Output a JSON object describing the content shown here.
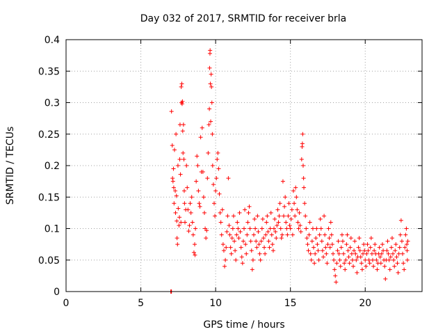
{
  "chart_data": {
    "type": "scatter",
    "title": "Day 032 of 2017, SRMTID for receiver brla",
    "xlabel": "GPS time / hours",
    "ylabel": "SRMTID / TECUs",
    "xlim": [
      0,
      23.8
    ],
    "ylim": [
      0,
      0.4
    ],
    "xticks": [
      0,
      5,
      10,
      15,
      20
    ],
    "yticks": [
      0,
      0.05,
      0.1,
      0.15,
      0.2,
      0.25,
      0.3,
      0.35,
      0.4
    ],
    "grid": true,
    "marker": "plus",
    "color": "#ff0000",
    "points": [
      [
        7.0,
        0.0
      ],
      [
        7.02,
        0.0
      ],
      [
        7.05,
        0.0
      ],
      [
        7.05,
        0.286
      ],
      [
        7.1,
        0.232
      ],
      [
        7.12,
        0.18
      ],
      [
        7.15,
        0.175
      ],
      [
        7.18,
        0.195
      ],
      [
        7.2,
        0.165
      ],
      [
        7.22,
        0.14
      ],
      [
        7.25,
        0.225
      ],
      [
        7.3,
        0.16
      ],
      [
        7.32,
        0.125
      ],
      [
        7.35,
        0.25
      ],
      [
        7.38,
        0.152
      ],
      [
        7.4,
        0.112
      ],
      [
        7.42,
        0.085
      ],
      [
        7.45,
        0.075
      ],
      [
        7.48,
        0.2
      ],
      [
        7.5,
        0.132
      ],
      [
        7.55,
        0.105
      ],
      [
        7.58,
        0.118
      ],
      [
        7.6,
        0.21
      ],
      [
        7.62,
        0.265
      ],
      [
        7.65,
        0.186
      ],
      [
        7.68,
        0.11
      ],
      [
        7.7,
        0.325
      ],
      [
        7.72,
        0.3
      ],
      [
        7.74,
        0.33
      ],
      [
        7.76,
        0.298
      ],
      [
        7.78,
        0.302
      ],
      [
        7.8,
        0.255
      ],
      [
        7.82,
        0.22
      ],
      [
        7.85,
        0.265
      ],
      [
        7.88,
        0.21
      ],
      [
        7.9,
        0.16
      ],
      [
        7.92,
        0.14
      ],
      [
        7.95,
        0.11
      ],
      [
        8.0,
        0.13
      ],
      [
        8.05,
        0.2
      ],
      [
        8.1,
        0.165
      ],
      [
        8.15,
        0.13
      ],
      [
        8.2,
        0.096
      ],
      [
        8.25,
        0.105
      ],
      [
        8.3,
        0.14
      ],
      [
        8.35,
        0.125
      ],
      [
        8.4,
        0.15
      ],
      [
        8.45,
        0.11
      ],
      [
        8.5,
        0.09
      ],
      [
        8.55,
        0.062
      ],
      [
        8.6,
        0.075
      ],
      [
        8.62,
        0.058
      ],
      [
        8.65,
        0.1
      ],
      [
        8.7,
        0.175
      ],
      [
        8.75,
        0.215
      ],
      [
        8.8,
        0.2
      ],
      [
        8.85,
        0.16
      ],
      [
        8.9,
        0.14
      ],
      [
        8.95,
        0.135
      ],
      [
        9.0,
        0.245
      ],
      [
        9.05,
        0.19
      ],
      [
        9.1,
        0.26
      ],
      [
        9.15,
        0.19
      ],
      [
        9.2,
        0.15
      ],
      [
        9.25,
        0.125
      ],
      [
        9.3,
        0.1
      ],
      [
        9.35,
        0.085
      ],
      [
        9.4,
        0.097
      ],
      [
        9.45,
        0.18
      ],
      [
        9.5,
        0.22
      ],
      [
        9.55,
        0.265
      ],
      [
        9.58,
        0.29
      ],
      [
        9.6,
        0.355
      ],
      [
        9.62,
        0.378
      ],
      [
        9.63,
        0.383
      ],
      [
        9.65,
        0.33
      ],
      [
        9.67,
        0.27
      ],
      [
        9.7,
        0.345
      ],
      [
        9.72,
        0.325
      ],
      [
        9.75,
        0.3
      ],
      [
        9.78,
        0.25
      ],
      [
        9.8,
        0.2
      ],
      [
        9.85,
        0.17
      ],
      [
        9.9,
        0.14
      ],
      [
        9.95,
        0.12
      ],
      [
        10.0,
        0.16
      ],
      [
        10.05,
        0.18
      ],
      [
        10.1,
        0.21
      ],
      [
        10.15,
        0.22
      ],
      [
        10.2,
        0.195
      ],
      [
        10.25,
        0.155
      ],
      [
        10.3,
        0.125
      ],
      [
        10.35,
        0.11
      ],
      [
        10.4,
        0.09
      ],
      [
        10.45,
        0.13
      ],
      [
        10.5,
        0.075
      ],
      [
        10.55,
        0.065
      ],
      [
        10.6,
        0.04
      ],
      [
        10.65,
        0.05
      ],
      [
        10.7,
        0.07
      ],
      [
        10.75,
        0.095
      ],
      [
        10.8,
        0.12
      ],
      [
        10.85,
        0.18
      ],
      [
        10.9,
        0.105
      ],
      [
        10.95,
        0.09
      ],
      [
        11.0,
        0.07
      ],
      [
        11.05,
        0.06
      ],
      [
        11.1,
        0.085
      ],
      [
        11.15,
        0.1
      ],
      [
        11.2,
        0.12
      ],
      [
        11.25,
        0.08
      ],
      [
        11.3,
        0.065
      ],
      [
        11.35,
        0.05
      ],
      [
        11.4,
        0.09
      ],
      [
        11.45,
        0.11
      ],
      [
        11.5,
        0.1
      ],
      [
        11.55,
        0.085
      ],
      [
        11.6,
        0.125
      ],
      [
        11.65,
        0.095
      ],
      [
        11.7,
        0.07
      ],
      [
        11.75,
        0.055
      ],
      [
        11.8,
        0.045
      ],
      [
        11.85,
        0.08
      ],
      [
        11.9,
        0.1
      ],
      [
        11.95,
        0.13
      ],
      [
        12.0,
        0.075
      ],
      [
        12.05,
        0.06
      ],
      [
        12.1,
        0.09
      ],
      [
        12.15,
        0.11
      ],
      [
        12.2,
        0.125
      ],
      [
        12.25,
        0.135
      ],
      [
        12.3,
        0.1
      ],
      [
        12.35,
        0.08
      ],
      [
        12.4,
        0.065
      ],
      [
        12.45,
        0.035
      ],
      [
        12.5,
        0.05
      ],
      [
        12.55,
        0.09
      ],
      [
        12.6,
        0.115
      ],
      [
        12.65,
        0.1
      ],
      [
        12.7,
        0.08
      ],
      [
        12.75,
        0.07
      ],
      [
        12.8,
        0.12
      ],
      [
        12.85,
        0.095
      ],
      [
        12.9,
        0.075
      ],
      [
        12.95,
        0.06
      ],
      [
        13.0,
        0.05
      ],
      [
        13.05,
        0.08
      ],
      [
        13.1,
        0.1
      ],
      [
        13.15,
        0.115
      ],
      [
        13.2,
        0.085
      ],
      [
        13.25,
        0.07
      ],
      [
        13.3,
        0.06
      ],
      [
        13.35,
        0.09
      ],
      [
        13.4,
        0.11
      ],
      [
        13.45,
        0.12
      ],
      [
        13.5,
        0.095
      ],
      [
        13.55,
        0.08
      ],
      [
        13.6,
        0.07
      ],
      [
        13.65,
        0.1
      ],
      [
        13.7,
        0.125
      ],
      [
        13.75,
        0.09
      ],
      [
        13.8,
        0.075
      ],
      [
        13.85,
        0.065
      ],
      [
        13.9,
        0.1
      ],
      [
        13.95,
        0.115
      ],
      [
        14.0,
        0.095
      ],
      [
        14.05,
        0.085
      ],
      [
        14.1,
        0.105
      ],
      [
        14.15,
        0.13
      ],
      [
        14.2,
        0.11
      ],
      [
        14.25,
        0.12
      ],
      [
        14.3,
        0.14
      ],
      [
        14.35,
        0.1
      ],
      [
        14.4,
        0.085
      ],
      [
        14.45,
        0.09
      ],
      [
        14.5,
        0.175
      ],
      [
        14.55,
        0.12
      ],
      [
        14.6,
        0.135
      ],
      [
        14.65,
        0.15
      ],
      [
        14.7,
        0.11
      ],
      [
        14.75,
        0.1
      ],
      [
        14.8,
        0.09
      ],
      [
        14.85,
        0.12
      ],
      [
        14.9,
        0.14
      ],
      [
        14.95,
        0.105
      ],
      [
        15.0,
        0.1
      ],
      [
        15.05,
        0.115
      ],
      [
        15.1,
        0.13
      ],
      [
        15.15,
        0.09
      ],
      [
        15.2,
        0.16
      ],
      [
        15.25,
        0.14
      ],
      [
        15.3,
        0.12
      ],
      [
        15.35,
        0.165
      ],
      [
        15.4,
        0.15
      ],
      [
        15.45,
        0.13
      ],
      [
        15.5,
        0.11
      ],
      [
        15.55,
        0.1
      ],
      [
        15.6,
        0.125
      ],
      [
        15.65,
        0.105
      ],
      [
        15.7,
        0.095
      ],
      [
        15.75,
        0.21
      ],
      [
        15.78,
        0.23
      ],
      [
        15.8,
        0.235
      ],
      [
        15.82,
        0.25
      ],
      [
        15.85,
        0.2
      ],
      [
        15.88,
        0.18
      ],
      [
        15.9,
        0.165
      ],
      [
        15.95,
        0.14
      ],
      [
        16.0,
        0.12
      ],
      [
        16.05,
        0.1
      ],
      [
        16.1,
        0.085
      ],
      [
        16.15,
        0.075
      ],
      [
        16.2,
        0.065
      ],
      [
        16.25,
        0.09
      ],
      [
        16.3,
        0.11
      ],
      [
        16.35,
        0.06
      ],
      [
        16.4,
        0.05
      ],
      [
        16.45,
        0.08
      ],
      [
        16.5,
        0.1
      ],
      [
        16.55,
        0.07
      ],
      [
        16.6,
        0.045
      ],
      [
        16.65,
        0.06
      ],
      [
        16.7,
        0.085
      ],
      [
        16.75,
        0.1
      ],
      [
        16.8,
        0.075
      ],
      [
        16.85,
        0.065
      ],
      [
        16.9,
        0.05
      ],
      [
        16.95,
        0.09
      ],
      [
        17.0,
        0.115
      ],
      [
        17.05,
        0.1
      ],
      [
        17.1,
        0.08
      ],
      [
        17.15,
        0.065
      ],
      [
        17.2,
        0.055
      ],
      [
        17.25,
        0.12
      ],
      [
        17.3,
        0.09
      ],
      [
        17.35,
        0.07
      ],
      [
        17.4,
        0.06
      ],
      [
        17.45,
        0.045
      ],
      [
        17.5,
        0.075
      ],
      [
        17.55,
        0.1
      ],
      [
        17.6,
        0.085
      ],
      [
        17.65,
        0.07
      ],
      [
        17.7,
        0.11
      ],
      [
        17.75,
        0.09
      ],
      [
        17.8,
        0.075
      ],
      [
        17.85,
        0.06
      ],
      [
        17.9,
        0.05
      ],
      [
        17.95,
        0.035
      ],
      [
        18.0,
        0.025
      ],
      [
        18.05,
        0.015
      ],
      [
        18.1,
        0.045
      ],
      [
        18.15,
        0.065
      ],
      [
        18.2,
        0.08
      ],
      [
        18.25,
        0.06
      ],
      [
        18.3,
        0.05
      ],
      [
        18.35,
        0.04
      ],
      [
        18.4,
        0.07
      ],
      [
        18.45,
        0.09
      ],
      [
        18.5,
        0.08
      ],
      [
        18.55,
        0.06
      ],
      [
        18.6,
        0.045
      ],
      [
        18.65,
        0.035
      ],
      [
        18.7,
        0.05
      ],
      [
        18.75,
        0.075
      ],
      [
        18.8,
        0.09
      ],
      [
        18.85,
        0.065
      ],
      [
        18.9,
        0.055
      ],
      [
        18.95,
        0.045
      ],
      [
        19.0,
        0.07
      ],
      [
        19.05,
        0.085
      ],
      [
        19.1,
        0.06
      ],
      [
        19.15,
        0.05
      ],
      [
        19.2,
        0.04
      ],
      [
        19.25,
        0.065
      ],
      [
        19.3,
        0.08
      ],
      [
        19.35,
        0.06
      ],
      [
        19.4,
        0.05
      ],
      [
        19.45,
        0.03
      ],
      [
        19.5,
        0.055
      ],
      [
        19.55,
        0.07
      ],
      [
        19.6,
        0.085
      ],
      [
        19.65,
        0.065
      ],
      [
        19.7,
        0.055
      ],
      [
        19.75,
        0.045
      ],
      [
        19.8,
        0.035
      ],
      [
        19.85,
        0.06
      ],
      [
        19.9,
        0.075
      ],
      [
        19.95,
        0.065
      ],
      [
        20.0,
        0.05
      ],
      [
        20.05,
        0.04
      ],
      [
        20.1,
        0.06
      ],
      [
        20.15,
        0.075
      ],
      [
        20.2,
        0.065
      ],
      [
        20.25,
        0.05
      ],
      [
        20.3,
        0.045
      ],
      [
        20.35,
        0.07
      ],
      [
        20.4,
        0.085
      ],
      [
        20.45,
        0.06
      ],
      [
        20.5,
        0.05
      ],
      [
        20.55,
        0.04
      ],
      [
        20.6,
        0.065
      ],
      [
        20.65,
        0.075
      ],
      [
        20.7,
        0.06
      ],
      [
        20.75,
        0.05
      ],
      [
        20.8,
        0.035
      ],
      [
        20.85,
        0.045
      ],
      [
        20.9,
        0.06
      ],
      [
        20.95,
        0.07
      ],
      [
        21.0,
        0.055
      ],
      [
        21.05,
        0.045
      ],
      [
        21.1,
        0.06
      ],
      [
        21.15,
        0.075
      ],
      [
        21.2,
        0.065
      ],
      [
        21.25,
        0.05
      ],
      [
        21.3,
        0.04
      ],
      [
        21.35,
        0.02
      ],
      [
        21.4,
        0.05
      ],
      [
        21.45,
        0.065
      ],
      [
        21.5,
        0.08
      ],
      [
        21.55,
        0.06
      ],
      [
        21.6,
        0.05
      ],
      [
        21.65,
        0.035
      ],
      [
        21.7,
        0.055
      ],
      [
        21.75,
        0.07
      ],
      [
        21.8,
        0.085
      ],
      [
        21.85,
        0.06
      ],
      [
        21.9,
        0.05
      ],
      [
        21.95,
        0.04
      ],
      [
        22.0,
        0.065
      ],
      [
        22.05,
        0.075
      ],
      [
        22.1,
        0.055
      ],
      [
        22.15,
        0.045
      ],
      [
        22.2,
        0.03
      ],
      [
        22.25,
        0.06
      ],
      [
        22.3,
        0.07
      ],
      [
        22.35,
        0.09
      ],
      [
        22.4,
        0.113
      ],
      [
        22.45,
        0.08
      ],
      [
        22.5,
        0.06
      ],
      [
        22.55,
        0.045
      ],
      [
        22.6,
        0.035
      ],
      [
        22.65,
        0.07
      ],
      [
        22.7,
        0.09
      ],
      [
        22.75,
        0.1
      ],
      [
        22.78,
        0.075
      ],
      [
        22.8,
        0.065
      ],
      [
        22.82,
        0.05
      ],
      [
        22.85,
        0.08
      ]
    ]
  }
}
